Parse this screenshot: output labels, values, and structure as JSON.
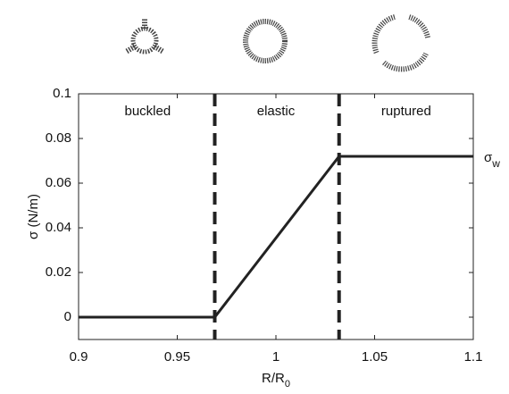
{
  "chart_data": {
    "type": "line",
    "x_label": {
      "text": "R/R",
      "subscript": "0"
    },
    "y_label": "σ (N/m)",
    "annotations": [
      {
        "text": "buckled",
        "x": 0.935,
        "y": 0.092
      },
      {
        "text": "elastic",
        "x": 1.0,
        "y": 0.092
      },
      {
        "text": "ruptured",
        "x": 1.066,
        "y": 0.092
      }
    ],
    "end_label": {
      "text": "σ",
      "subscript": "w"
    },
    "x": [
      0.9,
      0.969,
      1.032,
      1.1
    ],
    "series": [
      {
        "color": "#222222",
        "values": [
          0,
          0,
          0.072,
          0.072
        ]
      }
    ],
    "vlines": [
      0.969,
      1.032
    ],
    "xlim": [
      0.9,
      1.1
    ],
    "xticks": [
      0.9,
      0.95,
      1,
      1.05,
      1.1
    ],
    "ylim": [
      -0.01,
      0.1
    ],
    "yticks": [
      0,
      0.02,
      0.04,
      0.06,
      0.08,
      0.1
    ]
  }
}
